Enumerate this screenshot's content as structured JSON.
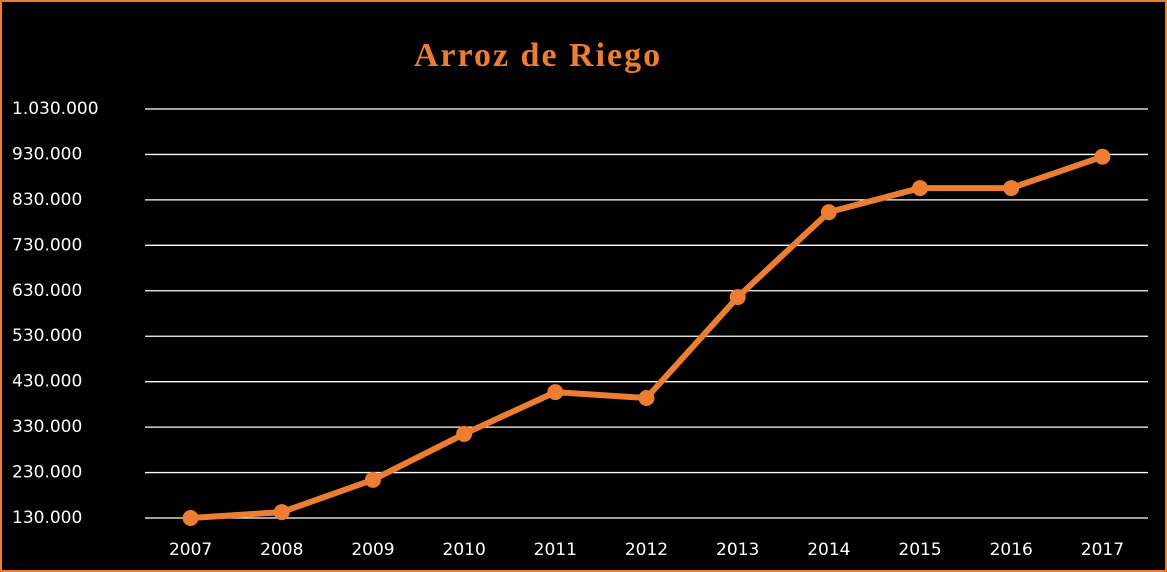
{
  "chart_data": {
    "type": "line",
    "title": "Arroz de Riego",
    "categories": [
      "2007",
      "2008",
      "2009",
      "2010",
      "2011",
      "2012",
      "2013",
      "2014",
      "2015",
      "2016",
      "2017"
    ],
    "values": [
      130000,
      143000,
      214000,
      315000,
      407000,
      394000,
      616000,
      803000,
      856000,
      856000,
      925000
    ],
    "color": "#ed7d31",
    "ylim": [
      130000,
      1030000
    ],
    "yticks": [
      {
        "value": 130000,
        "label": "130.000"
      },
      {
        "value": 230000,
        "label": "230.000"
      },
      {
        "value": 330000,
        "label": "330.000"
      },
      {
        "value": 430000,
        "label": "430.000"
      },
      {
        "value": 530000,
        "label": "530.000"
      },
      {
        "value": 630000,
        "label": "630.000"
      },
      {
        "value": 730000,
        "label": "730.000"
      },
      {
        "value": 830000,
        "label": "830.000"
      },
      {
        "value": 930000,
        "label": "930.000"
      },
      {
        "value": 1030000,
        "label": "1.030.000"
      }
    ],
    "grid": true
  }
}
